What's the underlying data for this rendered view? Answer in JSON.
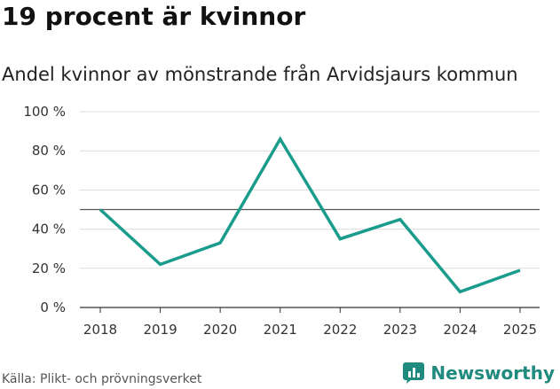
{
  "title": "19 procent är kvinnor",
  "subtitle": "Andel kvinnor av mönstrande från Arvidsjaurs kommun",
  "source": "Källa: Plikt- och prövningsverket",
  "brand": {
    "name": "Newsworthy",
    "icon": "newsworthy-logo-icon"
  },
  "colors": {
    "line": "#1a9c8c",
    "grid": "#dcdcdc",
    "reference": "#555555",
    "brand": "#1f8a7e"
  },
  "chart_data": {
    "type": "line",
    "x": [
      "2018",
      "2019",
      "2020",
      "2021",
      "2022",
      "2023",
      "2024",
      "2025"
    ],
    "series": [
      {
        "values": [
          50,
          22,
          33,
          86,
          35,
          45,
          8,
          19
        ]
      }
    ],
    "y_ticks": [
      0,
      20,
      40,
      60,
      80,
      100
    ],
    "y_tick_labels": [
      "0 %",
      "20 %",
      "40 %",
      "60 %",
      "80 %",
      "100 %"
    ],
    "ylim": [
      0,
      100
    ],
    "reference_line": 50,
    "grid": true,
    "legend": "none"
  }
}
